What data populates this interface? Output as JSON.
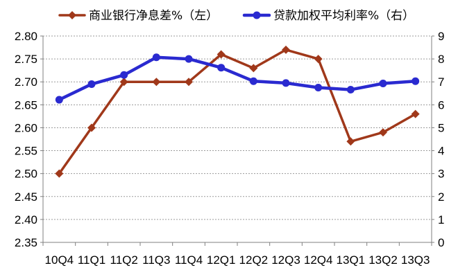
{
  "chart_data": {
    "type": "line",
    "title": "",
    "xlabel": "",
    "categories": [
      "10Q4",
      "11Q1",
      "11Q2",
      "11Q3",
      "11Q4",
      "12Q1",
      "12Q2",
      "12Q3",
      "12Q4",
      "13Q1",
      "13Q2",
      "13Q3"
    ],
    "series": [
      {
        "name": "商业银行净息差%（左）",
        "axis": "left",
        "color": "#A0381A",
        "marker": "diamond",
        "values": [
          2.5,
          2.6,
          2.7,
          2.7,
          2.7,
          2.76,
          2.73,
          2.77,
          2.75,
          2.57,
          2.59,
          2.63
        ]
      },
      {
        "name": "贷款加权平均利率%（右）",
        "axis": "right",
        "color": "#2A2AD0",
        "marker": "circle",
        "values": [
          6.22,
          6.9,
          7.3,
          8.07,
          8.0,
          7.62,
          7.03,
          6.95,
          6.75,
          6.66,
          6.93,
          7.03
        ]
      }
    ],
    "left_axis": {
      "ylim": [
        2.35,
        2.8
      ],
      "ticks": [
        "2.35",
        "2.40",
        "2.45",
        "2.50",
        "2.55",
        "2.60",
        "2.65",
        "2.70",
        "2.75",
        "2.80"
      ]
    },
    "right_axis": {
      "ylim": [
        0,
        9
      ],
      "ticks": [
        "0",
        "1",
        "2",
        "3",
        "4",
        "5",
        "6",
        "7",
        "8",
        "9"
      ]
    },
    "grid": true,
    "legend_position": "top"
  }
}
